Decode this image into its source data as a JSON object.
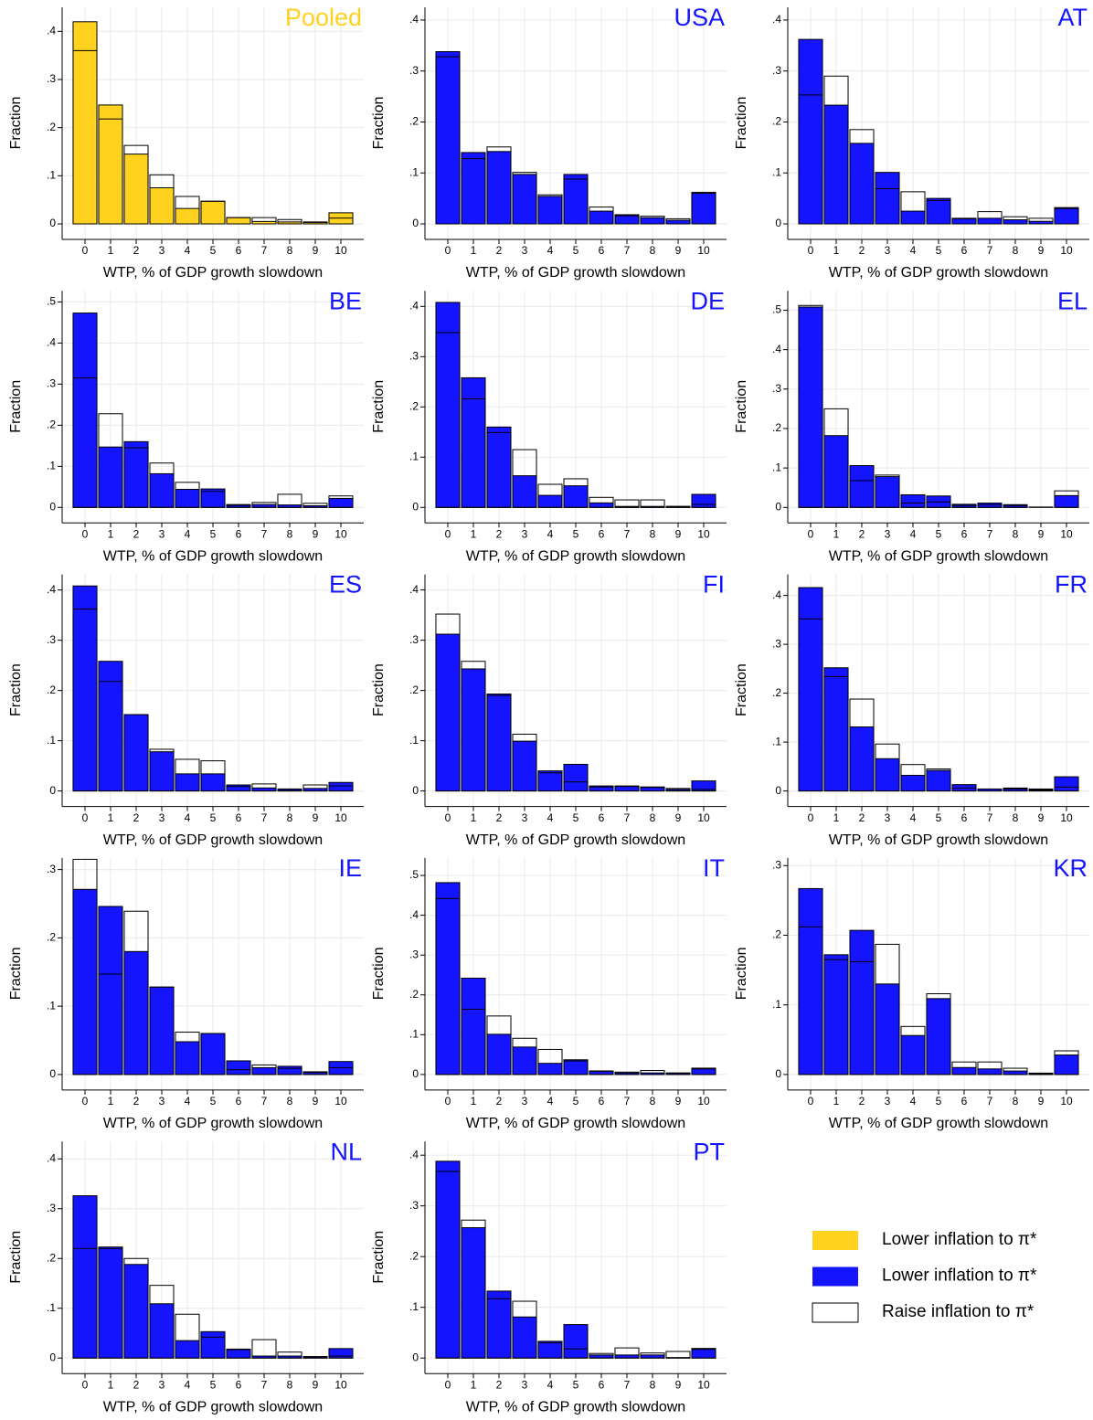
{
  "chart_data": [
    {
      "type": "bar",
      "title": "Pooled",
      "ylabel": "Fraction",
      "xlabel": "WTP, % of GDP growth slowdown",
      "categories": [
        0,
        1,
        2,
        3,
        4,
        5,
        6,
        7,
        8,
        9,
        10
      ],
      "grid": true,
      "ylim": [
        0,
        0.45
      ],
      "yticks": [
        0,
        {
          "value": 0.1,
          "label": ".1"
        },
        {
          "value": 0.2,
          "label": ".2"
        },
        {
          "value": 0.3,
          "label": ".3"
        },
        {
          "value": 0.4,
          "label": ".4"
        }
      ],
      "series": [
        {
          "color": "#ffd21f",
          "values": [
            0.42,
            0.247,
            0.145,
            0.075,
            0.032,
            0.047,
            0.013,
            0.005,
            0.004,
            0.003,
            0.023
          ]
        },
        {
          "color": "#ffffff",
          "values": [
            0.36,
            0.218,
            0.163,
            0.102,
            0.057,
            0.047,
            0.013,
            0.013,
            0.009,
            0.004,
            0.012
          ]
        }
      ]
    },
    {
      "type": "bar",
      "title": "USA",
      "ylabel": "Fraction",
      "xlabel": "WTP, % of GDP growth slowdown",
      "categories": [
        0,
        1,
        2,
        3,
        4,
        5,
        6,
        7,
        8,
        9,
        10
      ],
      "grid": true,
      "ylim": [
        0,
        0.425
      ],
      "yticks": [
        0,
        {
          "value": 0.1,
          "label": ".1"
        },
        {
          "value": 0.2,
          "label": ".2"
        },
        {
          "value": 0.3,
          "label": ".3"
        },
        {
          "value": 0.4,
          "label": ".4"
        }
      ],
      "series": [
        {
          "color": "#1414ff",
          "values": [
            0.338,
            0.14,
            0.142,
            0.097,
            0.054,
            0.097,
            0.025,
            0.018,
            0.012,
            0.007,
            0.06
          ]
        },
        {
          "color": "#ffffff",
          "values": [
            0.328,
            0.128,
            0.151,
            0.101,
            0.057,
            0.088,
            0.033,
            0.016,
            0.015,
            0.01,
            0.062
          ]
        }
      ]
    },
    {
      "type": "bar",
      "title": "AT",
      "ylabel": "Fraction",
      "xlabel": "WTP, % of GDP growth slowdown",
      "categories": [
        0,
        1,
        2,
        3,
        4,
        5,
        6,
        7,
        8,
        9,
        10
      ],
      "grid": true,
      "ylim": [
        0,
        0.425
      ],
      "yticks": [
        0,
        {
          "value": 0.1,
          "label": ".1"
        },
        {
          "value": 0.2,
          "label": ".2"
        },
        {
          "value": 0.3,
          "label": ".3"
        },
        {
          "value": 0.4,
          "label": ".4"
        }
      ],
      "series": [
        {
          "color": "#1414ff",
          "values": [
            0.362,
            0.233,
            0.158,
            0.101,
            0.025,
            0.05,
            0.011,
            0.011,
            0.008,
            0.005,
            0.032
          ]
        },
        {
          "color": "#ffffff",
          "values": [
            0.253,
            0.29,
            0.185,
            0.069,
            0.063,
            0.046,
            0.01,
            0.024,
            0.014,
            0.011,
            0.03
          ]
        }
      ]
    },
    {
      "type": "bar",
      "title": "BE",
      "ylabel": "Fraction",
      "xlabel": "WTP, % of GDP growth slowdown",
      "categories": [
        0,
        1,
        2,
        3,
        4,
        5,
        6,
        7,
        8,
        9,
        10
      ],
      "grid": true,
      "ylim": [
        0,
        0.527
      ],
      "yticks": [
        0,
        {
          "value": 0.1,
          "label": ".1"
        },
        {
          "value": 0.2,
          "label": ".2"
        },
        {
          "value": 0.3,
          "label": ".3"
        },
        {
          "value": 0.4,
          "label": ".4"
        },
        {
          "value": 0.5,
          "label": ".5"
        }
      ],
      "series": [
        {
          "color": "#1414ff",
          "values": [
            0.473,
            0.147,
            0.16,
            0.082,
            0.044,
            0.045,
            0.005,
            0.007,
            0.006,
            0.004,
            0.022
          ]
        },
        {
          "color": "#ffffff",
          "values": [
            0.315,
            0.228,
            0.145,
            0.108,
            0.061,
            0.039,
            0.007,
            0.012,
            0.032,
            0.01,
            0.028
          ]
        }
      ]
    },
    {
      "type": "bar",
      "title": "DE",
      "ylabel": "Fraction",
      "xlabel": "WTP, % of GDP growth slowdown",
      "categories": [
        0,
        1,
        2,
        3,
        4,
        5,
        6,
        7,
        8,
        9,
        10
      ],
      "grid": true,
      "ylim": [
        0,
        0.431
      ],
      "yticks": [
        0,
        {
          "value": 0.1,
          "label": ".1"
        },
        {
          "value": 0.2,
          "label": ".2"
        },
        {
          "value": 0.3,
          "label": ".3"
        },
        {
          "value": 0.4,
          "label": ".4"
        }
      ],
      "series": [
        {
          "color": "#1414ff",
          "values": [
            0.408,
            0.258,
            0.16,
            0.063,
            0.024,
            0.043,
            0.009,
            0.002,
            0.002,
            0.002,
            0.026
          ]
        },
        {
          "color": "#ffffff",
          "values": [
            0.348,
            0.216,
            0.149,
            0.115,
            0.046,
            0.057,
            0.02,
            0.015,
            0.015,
            0.002,
            0.006
          ]
        }
      ]
    },
    {
      "type": "bar",
      "title": "EL",
      "ylabel": "Fraction",
      "xlabel": "WTP, % of GDP growth slowdown",
      "categories": [
        0,
        1,
        2,
        3,
        4,
        5,
        6,
        7,
        8,
        9,
        10
      ],
      "grid": true,
      "ylim": [
        0,
        0.549
      ],
      "yticks": [
        0,
        {
          "value": 0.1,
          "label": ".1"
        },
        {
          "value": 0.2,
          "label": ".2"
        },
        {
          "value": 0.3,
          "label": ".3"
        },
        {
          "value": 0.4,
          "label": ".4"
        },
        {
          "value": 0.5,
          "label": ".5"
        }
      ],
      "series": [
        {
          "color": "#1414ff",
          "values": [
            0.508,
            0.182,
            0.106,
            0.078,
            0.032,
            0.029,
            0.008,
            0.011,
            0.007,
            0.001,
            0.03
          ]
        },
        {
          "color": "#ffffff",
          "values": [
            0.512,
            0.25,
            0.068,
            0.082,
            0.011,
            0.014,
            0.005,
            0.007,
            0.005,
            0,
            0.042
          ]
        }
      ]
    },
    {
      "type": "bar",
      "title": "ES",
      "ylabel": "Fraction",
      "xlabel": "WTP, % of GDP growth slowdown",
      "categories": [
        0,
        1,
        2,
        3,
        4,
        5,
        6,
        7,
        8,
        9,
        10
      ],
      "grid": true,
      "ylim": [
        0,
        0.431
      ],
      "yticks": [
        0,
        {
          "value": 0.1,
          "label": ".1"
        },
        {
          "value": 0.2,
          "label": ".2"
        },
        {
          "value": 0.3,
          "label": ".3"
        },
        {
          "value": 0.4,
          "label": ".4"
        }
      ],
      "series": [
        {
          "color": "#1414ff",
          "values": [
            0.408,
            0.258,
            0.152,
            0.078,
            0.034,
            0.034,
            0.012,
            0.006,
            0.004,
            0.005,
            0.017
          ]
        },
        {
          "color": "#ffffff",
          "values": [
            0.362,
            0.218,
            0.152,
            0.083,
            0.063,
            0.06,
            0.009,
            0.014,
            0.003,
            0.012,
            0.01
          ]
        }
      ]
    },
    {
      "type": "bar",
      "title": "FI",
      "ylabel": "Fraction",
      "xlabel": "WTP, % of GDP growth slowdown",
      "categories": [
        0,
        1,
        2,
        3,
        4,
        5,
        6,
        7,
        8,
        9,
        10
      ],
      "grid": true,
      "ylim": [
        0,
        0.431
      ],
      "yticks": [
        0,
        {
          "value": 0.1,
          "label": ".1"
        },
        {
          "value": 0.2,
          "label": ".2"
        },
        {
          "value": 0.3,
          "label": ".3"
        },
        {
          "value": 0.4,
          "label": ".4"
        }
      ],
      "series": [
        {
          "color": "#1414ff",
          "values": [
            0.312,
            0.243,
            0.193,
            0.099,
            0.04,
            0.053,
            0.01,
            0.01,
            0.008,
            0.003,
            0.02
          ]
        },
        {
          "color": "#ffffff",
          "values": [
            0.352,
            0.258,
            0.19,
            0.113,
            0.036,
            0.018,
            0.008,
            0.009,
            0.007,
            0.005,
            0.003
          ]
        }
      ]
    },
    {
      "type": "bar",
      "title": "FR",
      "ylabel": "Fraction",
      "xlabel": "WTP, % of GDP growth slowdown",
      "categories": [
        0,
        1,
        2,
        3,
        4,
        5,
        6,
        7,
        8,
        9,
        10
      ],
      "grid": true,
      "ylim": [
        0,
        0.443
      ],
      "yticks": [
        0,
        {
          "value": 0.1,
          "label": ".1"
        },
        {
          "value": 0.2,
          "label": ".2"
        },
        {
          "value": 0.3,
          "label": ".3"
        },
        {
          "value": 0.4,
          "label": ".4"
        }
      ],
      "series": [
        {
          "color": "#1414ff",
          "values": [
            0.416,
            0.252,
            0.131,
            0.066,
            0.032,
            0.042,
            0.013,
            0.004,
            0.006,
            0.004,
            0.029
          ]
        },
        {
          "color": "#ffffff",
          "values": [
            0.352,
            0.234,
            0.188,
            0.096,
            0.054,
            0.045,
            0.006,
            0.004,
            0.004,
            0.002,
            0.008
          ]
        }
      ]
    },
    {
      "type": "bar",
      "title": "IE",
      "ylabel": "Fraction",
      "xlabel": "WTP, % of GDP growth slowdown",
      "categories": [
        0,
        1,
        2,
        3,
        4,
        5,
        6,
        7,
        8,
        9,
        10
      ],
      "grid": true,
      "ylim": [
        0,
        0.317
      ],
      "yticks": [
        0,
        {
          "value": 0.1,
          "label": ".1"
        },
        {
          "value": 0.2,
          "label": ".2"
        },
        {
          "value": 0.3,
          "label": ".3"
        }
      ],
      "series": [
        {
          "color": "#1414ff",
          "values": [
            0.271,
            0.246,
            0.18,
            0.128,
            0.048,
            0.06,
            0.02,
            0.01,
            0.012,
            0.004,
            0.019
          ]
        },
        {
          "color": "#ffffff",
          "values": [
            0.315,
            0.147,
            0.239,
            0.128,
            0.062,
            0.06,
            0.007,
            0.014,
            0.009,
            0.003,
            0.01
          ]
        }
      ]
    },
    {
      "type": "bar",
      "title": "IT",
      "ylabel": "Fraction",
      "xlabel": "WTP, % of GDP growth slowdown",
      "categories": [
        0,
        1,
        2,
        3,
        4,
        5,
        6,
        7,
        8,
        9,
        10
      ],
      "grid": true,
      "ylim": [
        0,
        0.544
      ],
      "yticks": [
        0,
        {
          "value": 0.1,
          "label": ".1"
        },
        {
          "value": 0.2,
          "label": ".2"
        },
        {
          "value": 0.3,
          "label": ".3"
        },
        {
          "value": 0.4,
          "label": ".4"
        },
        {
          "value": 0.5,
          "label": ".5"
        }
      ],
      "series": [
        {
          "color": "#1414ff",
          "values": [
            0.482,
            0.242,
            0.101,
            0.069,
            0.028,
            0.037,
            0.008,
            0.004,
            0.004,
            0.003,
            0.016
          ]
        },
        {
          "color": "#ffffff",
          "values": [
            0.442,
            0.164,
            0.147,
            0.091,
            0.063,
            0.034,
            0.009,
            0.006,
            0.01,
            0.004,
            0.014
          ]
        }
      ]
    },
    {
      "type": "bar",
      "title": "KR",
      "ylabel": "Fraction",
      "xlabel": "WTP, % of GDP growth slowdown",
      "categories": [
        0,
        1,
        2,
        3,
        4,
        5,
        6,
        7,
        8,
        9,
        10
      ],
      "grid": true,
      "ylim": [
        0,
        0.311
      ],
      "yticks": [
        0,
        {
          "value": 0.1,
          "label": ".1"
        },
        {
          "value": 0.2,
          "label": ".2"
        },
        {
          "value": 0.3,
          "label": ".3"
        }
      ],
      "series": [
        {
          "color": "#1414ff",
          "values": [
            0.267,
            0.172,
            0.207,
            0.13,
            0.056,
            0.109,
            0.01,
            0.008,
            0.005,
            0.002,
            0.028
          ]
        },
        {
          "color": "#ffffff",
          "values": [
            0.212,
            0.165,
            0.162,
            0.187,
            0.069,
            0.116,
            0.018,
            0.018,
            0.009,
            0.001,
            0.034
          ]
        }
      ]
    },
    {
      "type": "bar",
      "title": "NL",
      "ylabel": "Fraction",
      "xlabel": "WTP, % of GDP growth slowdown",
      "categories": [
        0,
        1,
        2,
        3,
        4,
        5,
        6,
        7,
        8,
        9,
        10
      ],
      "grid": true,
      "ylim": [
        0,
        0.435
      ],
      "yticks": [
        0,
        {
          "value": 0.1,
          "label": ".1"
        },
        {
          "value": 0.2,
          "label": ".2"
        },
        {
          "value": 0.3,
          "label": ".3"
        },
        {
          "value": 0.4,
          "label": ".4"
        }
      ],
      "series": [
        {
          "color": "#1414ff",
          "values": [
            0.326,
            0.223,
            0.188,
            0.109,
            0.035,
            0.053,
            0.018,
            0.004,
            0.004,
            0.003,
            0.019
          ]
        },
        {
          "color": "#ffffff",
          "values": [
            0.22,
            0.22,
            0.2,
            0.146,
            0.088,
            0.042,
            0.017,
            0.037,
            0.012,
            0.001,
            0.004
          ]
        }
      ]
    },
    {
      "type": "bar",
      "title": "PT",
      "ylabel": "Fraction",
      "xlabel": "WTP, % of GDP growth slowdown",
      "categories": [
        0,
        1,
        2,
        3,
        4,
        5,
        6,
        7,
        8,
        9,
        10
      ],
      "grid": true,
      "ylim": [
        0,
        0.427
      ],
      "yticks": [
        0,
        {
          "value": 0.1,
          "label": ".1"
        },
        {
          "value": 0.2,
          "label": ".2"
        },
        {
          "value": 0.3,
          "label": ".3"
        },
        {
          "value": 0.4,
          "label": ".4"
        }
      ],
      "series": [
        {
          "color": "#1414ff",
          "values": [
            0.388,
            0.257,
            0.132,
            0.081,
            0.033,
            0.066,
            0.006,
            0.006,
            0.006,
            0.001,
            0.019
          ]
        },
        {
          "color": "#ffffff",
          "values": [
            0.368,
            0.272,
            0.117,
            0.112,
            0.03,
            0.018,
            0.009,
            0.02,
            0.01,
            0.013,
            0.017
          ]
        }
      ]
    }
  ],
  "legend": [
    {
      "label": "Lower inflation to π*",
      "color": "#ffd21f"
    },
    {
      "label": "Lower inflation to π*",
      "color": "#1414ff"
    },
    {
      "label": "Raise inflation to π*",
      "color": "#ffffff"
    }
  ]
}
